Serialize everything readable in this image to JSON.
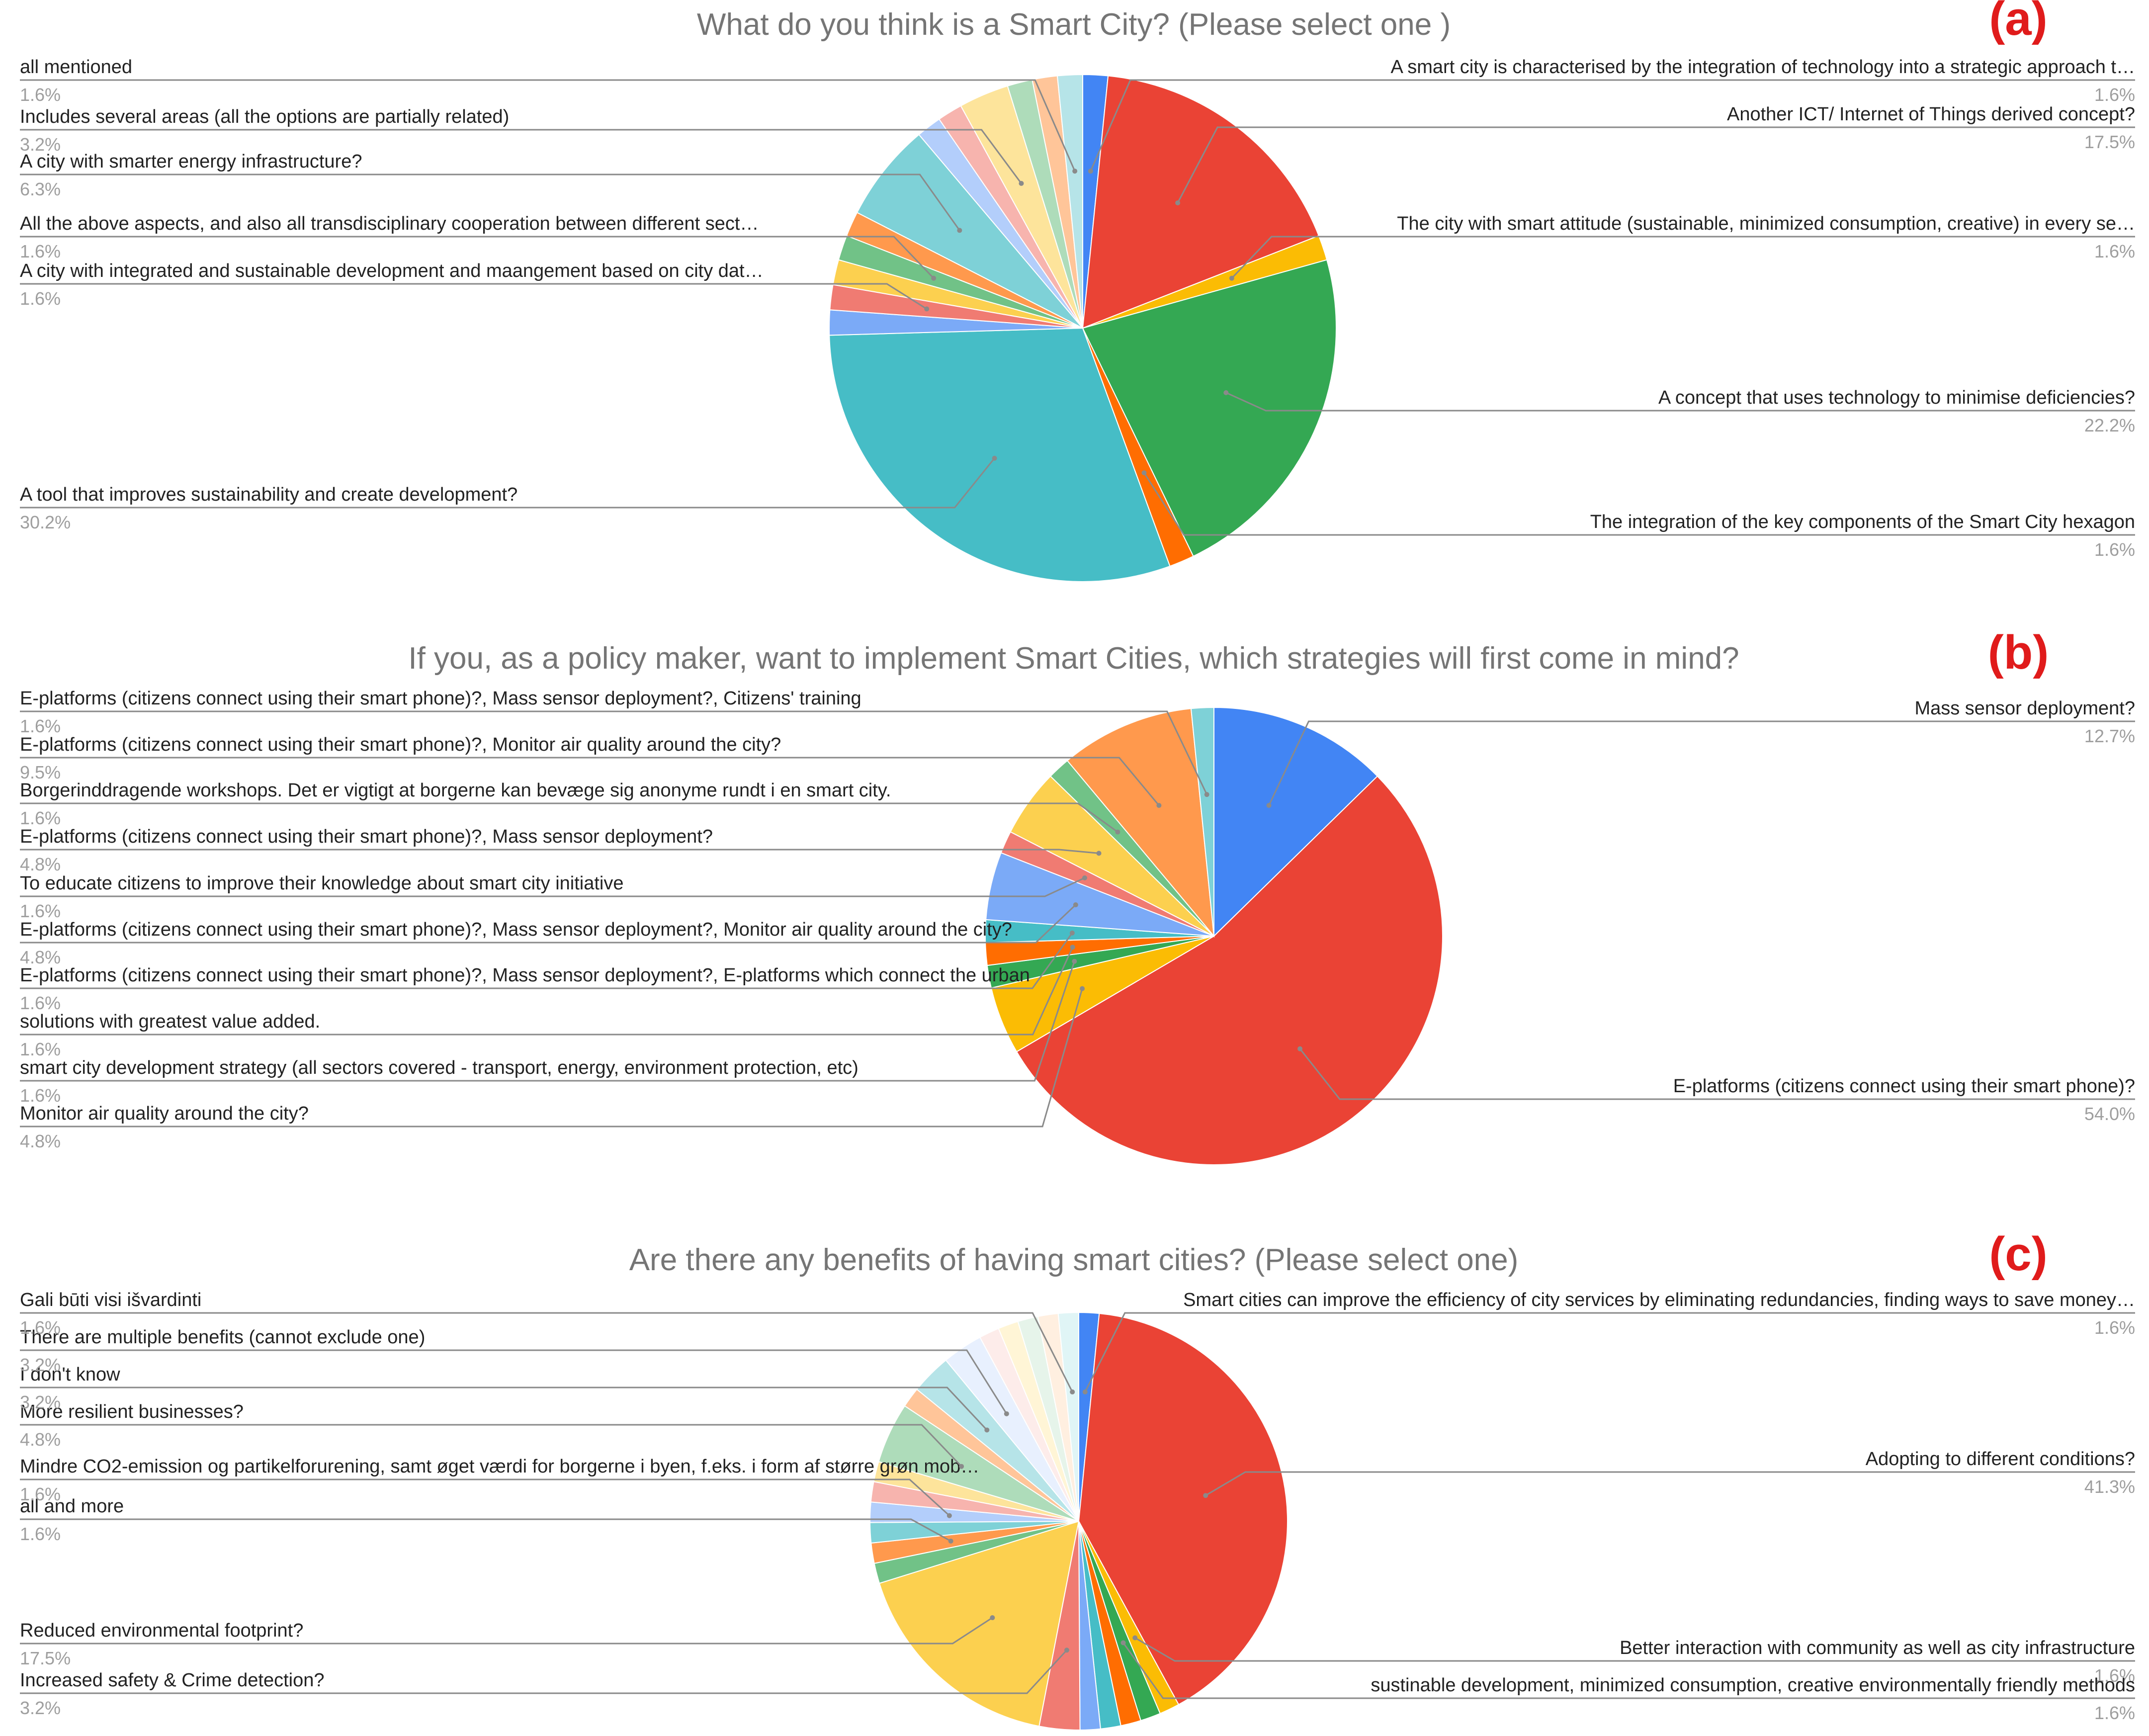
{
  "colors": {
    "title": "#757575",
    "label": "#222222",
    "percent": "#9e9e9e",
    "leader": "#8a8a8a",
    "panel_letter": "#e01b1b"
  },
  "chart_data": [
    {
      "type": "pie",
      "panel_label": "(a)",
      "title": "What do you think is a Smart City? (Please select one )",
      "slices": [
        {
          "label": "A smart city is characterised by the integration of technology into a strategic approach t…",
          "percent": "1.6%",
          "value": 1.6,
          "color": "#4285f4",
          "side": "right",
          "labeled": true
        },
        {
          "label": "Another ICT/ Internet of Things derived concept?",
          "percent": "17.5%",
          "value": 17.5,
          "color": "#ea4335",
          "side": "right",
          "labeled": true
        },
        {
          "label": "The city with smart attitude (sustainable, minimized consumption, creative) in every se…",
          "percent": "1.6%",
          "value": 1.6,
          "color": "#fbbc04",
          "side": "right",
          "labeled": true
        },
        {
          "label": "A concept that uses technology to minimise deficiencies?",
          "percent": "22.2%",
          "value": 22.2,
          "color": "#34a853",
          "side": "right",
          "labeled": true
        },
        {
          "label": "The integration of the key components of the Smart City hexagon",
          "percent": "1.6%",
          "value": 1.6,
          "color": "#ff6d01",
          "side": "right",
          "labeled": true
        },
        {
          "label": "A tool that improves sustainability and create development?",
          "percent": "30.2%",
          "value": 30.2,
          "color": "#46bdc6",
          "side": "left",
          "labeled": true
        },
        {
          "label": "",
          "percent": "",
          "value": 1.6,
          "color": "#7baaf7",
          "side": "left",
          "labeled": false
        },
        {
          "label": "A city with integrated and sustainable development and maangement based on city dat…",
          "percent": "1.6%",
          "value": 1.6,
          "color": "#f07b72",
          "side": "left",
          "labeled": true
        },
        {
          "label": "",
          "percent": "",
          "value": 1.6,
          "color": "#fcd04f",
          "side": "left",
          "labeled": false
        },
        {
          "label": "All the above aspects, and also all transdisciplinary cooperation between different sect…",
          "percent": "1.6%",
          "value": 1.6,
          "color": "#71c287",
          "side": "left",
          "labeled": true
        },
        {
          "label": "",
          "percent": "",
          "value": 1.6,
          "color": "#ff994d",
          "side": "left",
          "labeled": false
        },
        {
          "label": "A city with smarter energy infrastructure?",
          "percent": "6.3%",
          "value": 6.3,
          "color": "#7ed1d7",
          "side": "left",
          "labeled": true
        },
        {
          "label": "",
          "percent": "",
          "value": 1.6,
          "color": "#b3cefb",
          "side": "left",
          "labeled": false
        },
        {
          "label": "",
          "percent": "",
          "value": 1.6,
          "color": "#f7b4ae",
          "side": "left",
          "labeled": false
        },
        {
          "label": "Includes several areas (all the options are partially related)",
          "percent": "3.2%",
          "value": 3.2,
          "color": "#fde49b",
          "side": "left",
          "labeled": true
        },
        {
          "label": "",
          "percent": "",
          "value": 1.6,
          "color": "#aedcba",
          "side": "left",
          "labeled": false
        },
        {
          "label": "",
          "percent": "",
          "value": 1.6,
          "color": "#ffc599",
          "side": "left",
          "labeled": false
        },
        {
          "label": "all mentioned",
          "percent": "1.6%",
          "value": 1.6,
          "color": "#b6e4e8",
          "side": "left",
          "labeled": true
        }
      ]
    },
    {
      "type": "pie",
      "panel_label": "(b)",
      "title": "If you, as a policy maker, want to implement Smart Cities, which strategies will first come in mind?",
      "slices": [
        {
          "label": "Mass sensor deployment?",
          "percent": "12.7%",
          "value": 12.7,
          "color": "#4285f4",
          "side": "right",
          "labeled": true
        },
        {
          "label": "E-platforms (citizens connect using their smart phone)?",
          "percent": "54.0%",
          "value": 54.0,
          "color": "#ea4335",
          "side": "right",
          "labeled": true
        },
        {
          "label": "Monitor air quality around the city?",
          "percent": "4.8%",
          "value": 4.8,
          "color": "#fbbc04",
          "side": "left",
          "labeled": true
        },
        {
          "label": "smart city development strategy (all sectors covered - transport, energy, environment protection, etc)",
          "percent": "1.6%",
          "value": 1.6,
          "color": "#34a853",
          "side": "left",
          "labeled": true
        },
        {
          "label": "solutions with greatest value added.",
          "percent": "1.6%",
          "value": 1.6,
          "color": "#ff6d01",
          "side": "left",
          "labeled": true
        },
        {
          "label": "E-platforms (citizens connect using their smart phone)?, Mass sensor deployment?, E-platforms which connect the urban",
          "percent": "1.6%",
          "value": 1.6,
          "color": "#46bdc6",
          "side": "left",
          "labeled": true
        },
        {
          "label": "E-platforms (citizens connect using their smart phone)?, Mass sensor deployment?, Monitor air quality around the city?",
          "percent": "4.8%",
          "value": 4.8,
          "color": "#7baaf7",
          "side": "left",
          "labeled": true
        },
        {
          "label": "To educate citizens to improve their knowledge about smart city initiative",
          "percent": "1.6%",
          "value": 1.6,
          "color": "#f07b72",
          "side": "left",
          "labeled": true
        },
        {
          "label": "E-platforms (citizens connect using their smart phone)?, Mass sensor deployment?",
          "percent": "4.8%",
          "value": 4.8,
          "color": "#fcd04f",
          "side": "left",
          "labeled": true
        },
        {
          "label": "Borgerinddragende workshops. Det er vigtigt at borgerne kan bevæge sig anonyme rundt i en smart city.",
          "percent": "1.6%",
          "value": 1.6,
          "color": "#71c287",
          "side": "left",
          "labeled": true
        },
        {
          "label": "E-platforms (citizens connect using their smart phone)?, Monitor air quality around the city?",
          "percent": "9.5%",
          "value": 9.5,
          "color": "#ff994d",
          "side": "left",
          "labeled": true
        },
        {
          "label": "E-platforms (citizens connect using their smart phone)?, Mass sensor deployment?, Citizens' training",
          "percent": "1.6%",
          "value": 1.6,
          "color": "#7ed1d7",
          "side": "left",
          "labeled": true
        }
      ]
    },
    {
      "type": "pie",
      "panel_label": "(c)",
      "title": "Are there any benefits of having smart cities? (Please select one)",
      "slices": [
        {
          "label": "Smart cities can improve the efficiency of city services by eliminating redundancies, finding ways to save money…",
          "percent": "1.6%",
          "value": 1.6,
          "color": "#4285f4",
          "side": "right",
          "labeled": true
        },
        {
          "label": "Adopting to different conditions?",
          "percent": "41.3%",
          "value": 41.3,
          "color": "#ea4335",
          "side": "right",
          "labeled": true
        },
        {
          "label": "Better interaction with community as well as city infrastructure",
          "percent": "1.6%",
          "value": 1.6,
          "color": "#fbbc04",
          "side": "right",
          "labeled": true
        },
        {
          "label": "sustinable development, minimized consumption, creative environmentally friendly  methods",
          "percent": "1.6%",
          "value": 1.6,
          "color": "#34a853",
          "side": "right",
          "labeled": true
        },
        {
          "label": "",
          "percent": "",
          "value": 1.6,
          "color": "#ff6d01",
          "side": "left",
          "labeled": false
        },
        {
          "label": "",
          "percent": "",
          "value": 1.6,
          "color": "#46bdc6",
          "side": "left",
          "labeled": false
        },
        {
          "label": "",
          "percent": "",
          "value": 1.6,
          "color": "#7baaf7",
          "side": "left",
          "labeled": false
        },
        {
          "label": "Increased safety & Crime detection?",
          "percent": "3.2%",
          "value": 3.2,
          "color": "#f07b72",
          "side": "left",
          "labeled": true
        },
        {
          "label": "Reduced environmental footprint?",
          "percent": "17.5%",
          "value": 17.5,
          "color": "#fcd04f",
          "side": "left",
          "labeled": true
        },
        {
          "label": "",
          "percent": "",
          "value": 1.6,
          "color": "#71c287",
          "side": "left",
          "labeled": false
        },
        {
          "label": "all and more",
          "percent": "1.6%",
          "value": 1.6,
          "color": "#ff994d",
          "side": "left",
          "labeled": true
        },
        {
          "label": "",
          "percent": "",
          "value": 1.6,
          "color": "#7ed1d7",
          "side": "left",
          "labeled": false
        },
        {
          "label": "Mindre CO2-emission og partikelforurening, samt øget værdi for borgerne i byen, f.eks. i form af større grøn mob…",
          "percent": "1.6%",
          "value": 1.6,
          "color": "#b3cefb",
          "side": "left",
          "labeled": true
        },
        {
          "label": "",
          "percent": "",
          "value": 1.6,
          "color": "#f7b4ae",
          "side": "left",
          "labeled": false
        },
        {
          "label": "",
          "percent": "",
          "value": 1.6,
          "color": "#fde49b",
          "side": "left",
          "labeled": false
        },
        {
          "label": "More resilient businesses?",
          "percent": "4.8%",
          "value": 4.8,
          "color": "#aedcba",
          "side": "left",
          "labeled": true
        },
        {
          "label": "",
          "percent": "",
          "value": 1.6,
          "color": "#ffc599",
          "side": "left",
          "labeled": false
        },
        {
          "label": "I don't know",
          "percent": "3.2%",
          "value": 3.2,
          "color": "#b6e4e8",
          "side": "left",
          "labeled": true
        },
        {
          "label": "There are multiple benefits (cannot exclude one)",
          "percent": "3.2%",
          "value": 3.2,
          "color": "#e8f0fe",
          "side": "left",
          "labeled": true
        },
        {
          "label": "",
          "percent": "",
          "value": 1.6,
          "color": "#fdecea",
          "side": "left",
          "labeled": false
        },
        {
          "label": "",
          "percent": "",
          "value": 1.6,
          "color": "#fff5d6",
          "side": "left",
          "labeled": false
        },
        {
          "label": "",
          "percent": "",
          "value": 1.6,
          "color": "#e6f4ea",
          "side": "left",
          "labeled": false
        },
        {
          "label": "",
          "percent": "",
          "value": 1.6,
          "color": "#ffefe0",
          "side": "left",
          "labeled": false
        },
        {
          "label": "Gali būti visi išvardinti",
          "percent": "1.6%",
          "value": 1.6,
          "color": "#e0f5f6",
          "side": "left",
          "labeled": true
        }
      ]
    }
  ]
}
